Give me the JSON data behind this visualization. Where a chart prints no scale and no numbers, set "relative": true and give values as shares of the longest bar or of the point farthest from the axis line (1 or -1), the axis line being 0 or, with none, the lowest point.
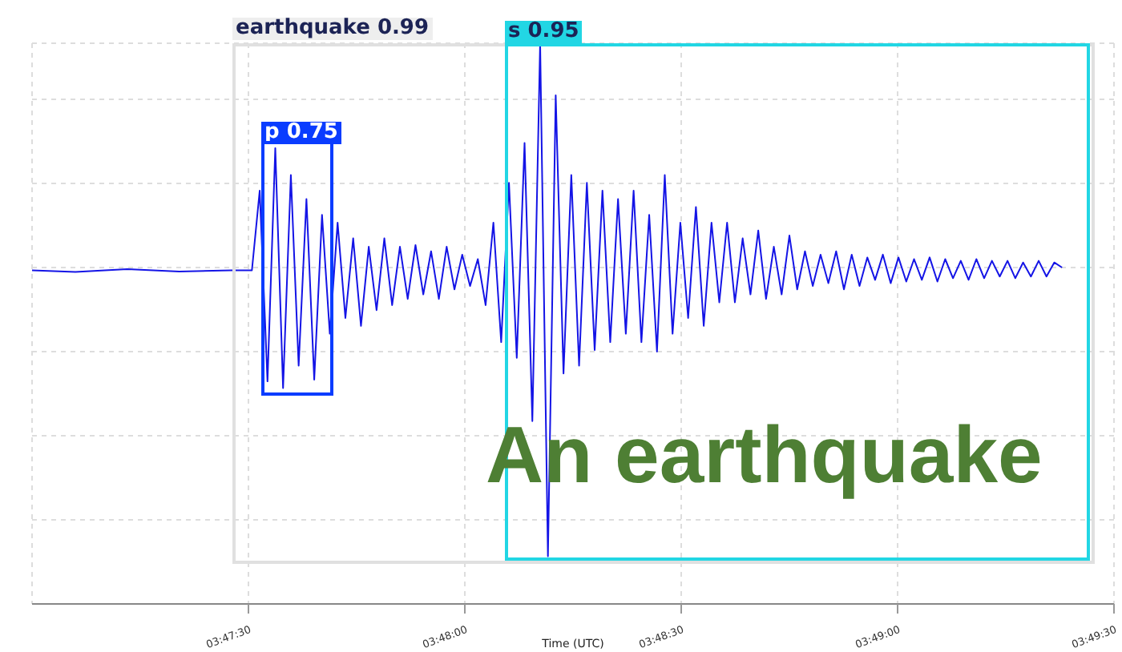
{
  "chart_data": {
    "type": "line",
    "xlabel": "Time (UTC)",
    "relative": true,
    "grid": true,
    "marker": "none",
    "line_style": "solid",
    "xlim": [
      3.783333,
      3.825
    ],
    "xticks": [
      {
        "value": 3.791667,
        "label": "03:47:30"
      },
      {
        "value": 3.8,
        "label": "03:48:00"
      },
      {
        "value": 3.808333,
        "label": "03:48:30"
      },
      {
        "value": 3.816667,
        "label": "03:49:00"
      },
      {
        "value": 3.825,
        "label": "03:49:30"
      }
    ],
    "annotations": [
      "earthquake 0.99",
      "s 0.95",
      "p 0.75",
      "An earthquake"
    ],
    "x": [
      3.783333,
      3.785,
      3.787,
      3.789,
      3.791,
      3.7918,
      3.7921,
      3.7924,
      3.7927,
      3.793,
      3.7933,
      3.7936,
      3.7939,
      3.7942,
      3.7945,
      3.7948,
      3.7951,
      3.7954,
      3.7957,
      3.796,
      3.7963,
      3.7966,
      3.7969,
      3.7972,
      3.7975,
      3.7978,
      3.7981,
      3.7984,
      3.7987,
      3.799,
      3.7993,
      3.7996,
      3.7999,
      3.8002,
      3.8005,
      3.8008,
      3.8011,
      3.8014,
      3.8017,
      3.802,
      3.8023,
      3.8026,
      3.8029,
      3.8032,
      3.8035,
      3.8038,
      3.8041,
      3.8044,
      3.8047,
      3.805,
      3.8053,
      3.8056,
      3.8059,
      3.8062,
      3.8065,
      3.8068,
      3.8071,
      3.8074,
      3.8077,
      3.808,
      3.8083,
      3.8086,
      3.8089,
      3.8092,
      3.8095,
      3.8098,
      3.8101,
      3.8104,
      3.8107,
      3.811,
      3.8113,
      3.8116,
      3.8119,
      3.8122,
      3.8125,
      3.8128,
      3.8131,
      3.8134,
      3.8137,
      3.814,
      3.8143,
      3.8146,
      3.8149,
      3.8152,
      3.8155,
      3.8158,
      3.8161,
      3.8164,
      3.8167,
      3.817,
      3.8173,
      3.8176,
      3.8179,
      3.8182,
      3.8185,
      3.8188,
      3.8191,
      3.8194,
      3.8197,
      3.82,
      3.8203,
      3.8206,
      3.8209,
      3.8212,
      3.8215,
      3.8218,
      3.8221,
      3.8224,
      3.8227,
      3.823
    ],
    "series": [
      {
        "color": "#1414e6",
        "values": [
          0.595,
          0.592,
          0.597,
          0.593,
          0.595,
          0.595,
          0.737,
          0.397,
          0.813,
          0.385,
          0.765,
          0.425,
          0.722,
          0.4,
          0.694,
          0.482,
          0.68,
          0.51,
          0.652,
          0.496,
          0.637,
          0.524,
          0.652,
          0.533,
          0.637,
          0.544,
          0.64,
          0.552,
          0.629,
          0.544,
          0.637,
          0.561,
          0.623,
          0.567,
          0.615,
          0.533,
          0.68,
          0.467,
          0.751,
          0.439,
          0.822,
          0.326,
          1,
          0.085,
          0.907,
          0.411,
          0.765,
          0.425,
          0.751,
          0.453,
          0.737,
          0.467,
          0.722,
          0.482,
          0.737,
          0.467,
          0.694,
          0.45,
          0.765,
          0.482,
          0.68,
          0.51,
          0.708,
          0.496,
          0.68,
          0.538,
          0.68,
          0.538,
          0.652,
          0.552,
          0.666,
          0.544,
          0.637,
          0.552,
          0.657,
          0.561,
          0.629,
          0.567,
          0.623,
          0.572,
          0.629,
          0.561,
          0.623,
          0.567,
          0.618,
          0.578,
          0.623,
          0.572,
          0.618,
          0.575,
          0.615,
          0.578,
          0.618,
          0.575,
          0.615,
          0.581,
          0.612,
          0.578,
          0.615,
          0.581,
          0.612,
          0.584,
          0.612,
          0.581,
          0.609,
          0.584,
          0.612,
          0.584,
          0.609,
          0.6
        ]
      }
    ]
  }
}
